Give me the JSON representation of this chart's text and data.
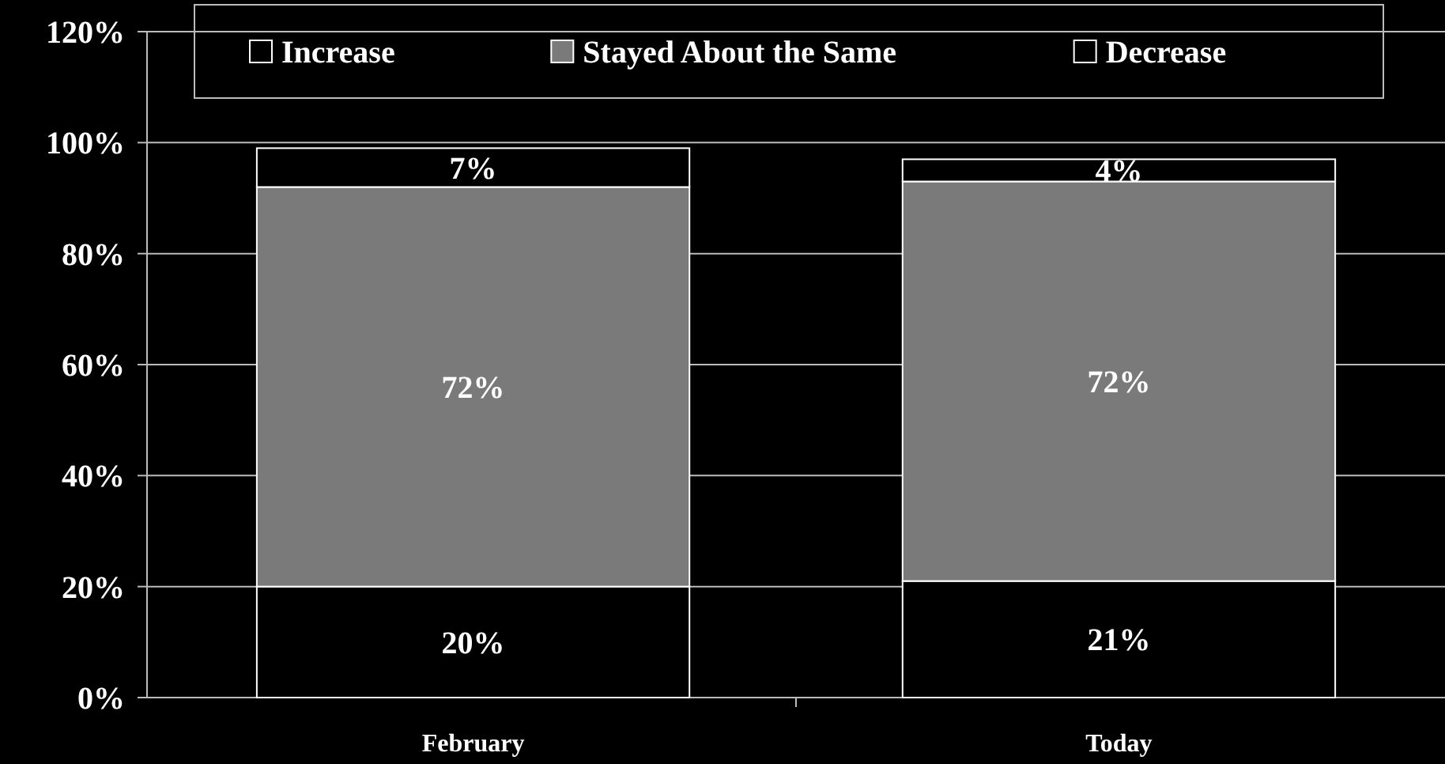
{
  "chart_data": {
    "type": "bar",
    "stacked": true,
    "categories": [
      "February",
      "Today"
    ],
    "series": [
      {
        "name": "Increase",
        "color": "#000000",
        "values": [
          20,
          21
        ],
        "value_labels": [
          "20%",
          "21%"
        ]
      },
      {
        "name": "Stayed About the Same",
        "color": "#7a7a7a",
        "values": [
          72,
          72
        ],
        "value_labels": [
          "72%",
          "72%"
        ]
      },
      {
        "name": "Decrease",
        "color": "#000000",
        "values": [
          7,
          4
        ],
        "value_labels": [
          "7%",
          "4%"
        ]
      }
    ],
    "ylim": [
      0,
      120
    ],
    "yticks": [
      {
        "value": 0,
        "label": "0%"
      },
      {
        "value": 20,
        "label": "20%"
      },
      {
        "value": 40,
        "label": "40%"
      },
      {
        "value": 60,
        "label": "60%"
      },
      {
        "value": 80,
        "label": "80%"
      },
      {
        "value": 100,
        "label": "100%"
      },
      {
        "value": 120,
        "label": "120%"
      }
    ],
    "grid": "y",
    "legend": "top"
  }
}
